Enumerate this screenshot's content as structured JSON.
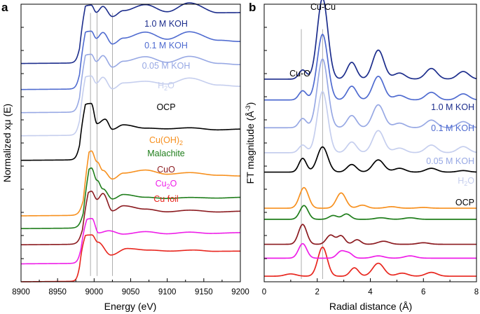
{
  "chart_data": [
    {
      "panel": "a",
      "type": "line",
      "title": "",
      "xlabel": "Energy (eV)",
      "ylabel": "Normalized xμ (E)",
      "xlim": [
        8900,
        9200
      ],
      "xticks": [
        "8900",
        "8950",
        "9000",
        "9050",
        "9100",
        "9150",
        "9200"
      ],
      "ylim": [
        0,
        9.6
      ],
      "reference_lines_x": [
        8995,
        9004,
        9025
      ],
      "series": [
        {
          "name": "Cu foil",
          "label": "Cu foil",
          "color": "#e8251d",
          "offset": 0.0,
          "edge": 8980,
          "edge_width": 2.0,
          "osc": [
            [
              8997,
              0.6
            ],
            [
              9005,
              0.35
            ],
            [
              9023,
              -0.1
            ],
            [
              9045,
              0.12
            ],
            [
              9075,
              0.06
            ],
            [
              9105,
              0.02
            ],
            [
              9135,
              0.05
            ],
            [
              9165,
              0.0
            ],
            [
              9200,
              0.0
            ]
          ]
        },
        {
          "name": "Cu2O",
          "label_main": "Cu",
          "label_sub": "2",
          "label_tail": "O",
          "color": "#ee1ee8",
          "offset": 0.62,
          "edge": 8982,
          "edge_width": 2.4,
          "osc": [
            [
              8997,
              0.55
            ],
            [
              9006,
              0.05
            ],
            [
              9020,
              0.12
            ],
            [
              9040,
              0.0
            ],
            [
              9070,
              0.08
            ],
            [
              9100,
              0.0
            ],
            [
              9130,
              0.05
            ],
            [
              9160,
              0.0
            ],
            [
              9200,
              0.02
            ]
          ]
        },
        {
          "name": "CuO",
          "label": "CuO",
          "color": "#8b1a1f",
          "offset": 1.28,
          "edge": 8984,
          "edge_width": 3.0,
          "osc": [
            [
              8996,
              0.85
            ],
            [
              9004,
              0.55
            ],
            [
              9012,
              0.75
            ],
            [
              9025,
              0.15
            ],
            [
              9040,
              0.32
            ],
            [
              9070,
              0.2
            ],
            [
              9100,
              0.1
            ],
            [
              9130,
              0.15
            ],
            [
              9170,
              0.08
            ],
            [
              9200,
              0.1
            ]
          ]
        },
        {
          "name": "Malachite",
          "label": "Malachite",
          "color": "#1e7d1a",
          "offset": 1.84,
          "edge": 8985,
          "edge_width": 3.0,
          "osc": [
            [
              8996,
              1.1
            ],
            [
              9004,
              0.65
            ],
            [
              9012,
              0.35
            ],
            [
              9025,
              0.0
            ],
            [
              9040,
              0.15
            ],
            [
              9070,
              0.05
            ],
            [
              9100,
              0.0
            ],
            [
              9130,
              0.03
            ],
            [
              9170,
              0.0
            ],
            [
              9200,
              0.02
            ]
          ]
        },
        {
          "name": "Cu(OH)2",
          "label_main": "Cu(OH)",
          "label_sub": "2",
          "label_tail": "",
          "color": "#f7901e",
          "offset": 2.28,
          "edge": 8985,
          "edge_width": 3.0,
          "osc": [
            [
              8996,
              1.25
            ],
            [
              9004,
              0.85
            ],
            [
              9012,
              0.55
            ],
            [
              9025,
              0.25
            ],
            [
              9040,
              0.45
            ],
            [
              9070,
              0.55
            ],
            [
              9100,
              0.4
            ],
            [
              9130,
              0.45
            ],
            [
              9170,
              0.35
            ],
            [
              9200,
              0.32
            ]
          ]
        },
        {
          "name": "OCP",
          "label": "OCP",
          "color": "#000000",
          "offset": 4.2,
          "edge": 8980,
          "edge_width": 2.5,
          "osc": [
            [
              8996,
              0.95
            ],
            [
              9004,
              0.25
            ],
            [
              9015,
              0.4
            ],
            [
              9025,
              0.05
            ],
            [
              9040,
              0.2
            ],
            [
              9070,
              0.08
            ],
            [
              9100,
              0.05
            ],
            [
              9130,
              0.08
            ],
            [
              9170,
              0.0
            ],
            [
              9200,
              0.02
            ]
          ]
        },
        {
          "name": "H2O",
          "label_main": "H",
          "label_sub": "2",
          "label_tail": "O",
          "color": "#c5ceee",
          "offset": 5.05,
          "edge": 8980,
          "edge_width": 2.5,
          "osc": [
            [
              8996,
              1.05
            ],
            [
              9003,
              0.8
            ],
            [
              9012,
              1.0
            ],
            [
              9025,
              0.6
            ],
            [
              9040,
              0.8
            ],
            [
              9070,
              0.85
            ],
            [
              9100,
              0.75
            ],
            [
              9130,
              0.95
            ],
            [
              9170,
              0.7
            ],
            [
              9200,
              0.65
            ]
          ]
        },
        {
          "name": "0.05 M KOH",
          "label": "0.05 M KOH",
          "color": "#97a8e4",
          "offset": 5.85,
          "edge": 8980,
          "edge_width": 2.5,
          "osc": [
            [
              8996,
              1.0
            ],
            [
              9003,
              0.75
            ],
            [
              9012,
              0.95
            ],
            [
              9025,
              0.55
            ],
            [
              9040,
              0.75
            ],
            [
              9070,
              0.9
            ],
            [
              9100,
              0.7
            ],
            [
              9130,
              0.9
            ],
            [
              9170,
              0.65
            ],
            [
              9200,
              0.6
            ]
          ]
        },
        {
          "name": "0.1 M KOH",
          "label": "0.1 M KOH",
          "color": "#4f6bd0",
          "offset": 6.65,
          "edge": 8980,
          "edge_width": 2.5,
          "osc": [
            [
              8996,
              1.0
            ],
            [
              9003,
              0.75
            ],
            [
              9012,
              0.95
            ],
            [
              9025,
              0.55
            ],
            [
              9040,
              0.75
            ],
            [
              9070,
              0.95
            ],
            [
              9100,
              0.7
            ],
            [
              9130,
              0.95
            ],
            [
              9170,
              0.65
            ],
            [
              9200,
              0.6
            ]
          ]
        },
        {
          "name": "1.0 M KOH",
          "label": "1.0 M KOH",
          "color": "#1c2d8c",
          "offset": 7.55,
          "edge": 8980,
          "edge_width": 2.5,
          "osc": [
            [
              8996,
              1.0
            ],
            [
              9003,
              0.75
            ],
            [
              9012,
              0.95
            ],
            [
              9025,
              0.6
            ],
            [
              9040,
              0.8
            ],
            [
              9070,
              1.0
            ],
            [
              9100,
              0.75
            ],
            [
              9130,
              1.05
            ],
            [
              9170,
              0.7
            ],
            [
              9200,
              0.7
            ]
          ]
        }
      ]
    },
    {
      "panel": "b",
      "type": "line",
      "title": "",
      "xlabel": "Radial distance (Å)",
      "ylabel_main": "FT magnitude (Å",
      "ylabel_sup": "-3",
      "ylabel_tail": ")",
      "xlim": [
        0,
        8
      ],
      "xticks": [
        "0",
        "2",
        "4",
        "6",
        "8"
      ],
      "ylim": [
        0,
        10
      ],
      "reference_lines_x": [
        1.4,
        2.2
      ],
      "peak_annotations": [
        {
          "text": "Cu-O",
          "x": 1.4
        },
        {
          "text": "Cu-Cu",
          "x": 2.2
        }
      ],
      "series": [
        {
          "name": "Cu foil",
          "color": "#e8251d",
          "offset": 0.2,
          "peaks": [
            [
              1.0,
              0.15,
              0.3
            ],
            [
              2.2,
              1.9,
              0.25
            ],
            [
              3.4,
              0.55,
              0.22
            ],
            [
              4.3,
              0.85,
              0.3
            ],
            [
              5.2,
              0.2,
              0.3
            ],
            [
              6.3,
              0.25,
              0.3
            ]
          ]
        },
        {
          "name": "Cu2O",
          "color": "#ee1ee8",
          "offset": 0.85,
          "peaks": [
            [
              1.45,
              0.95,
              0.22
            ],
            [
              2.9,
              0.45,
              0.22
            ],
            [
              3.2,
              0.3,
              0.2
            ],
            [
              4.3,
              0.15,
              0.3
            ],
            [
              5.5,
              0.15,
              0.3
            ]
          ]
        },
        {
          "name": "CuO",
          "color": "#8b1a1f",
          "offset": 1.35,
          "peaks": [
            [
              1.45,
              1.3,
              0.22
            ],
            [
              2.5,
              0.6,
              0.22
            ],
            [
              2.9,
              0.55,
              0.2
            ],
            [
              3.5,
              0.3,
              0.2
            ],
            [
              4.5,
              0.2,
              0.3
            ],
            [
              6.0,
              0.1,
              0.3
            ]
          ]
        },
        {
          "name": "Malachite",
          "color": "#1e7d1a",
          "offset": 2.25,
          "peaks": [
            [
              1.5,
              0.9,
              0.22
            ],
            [
              2.6,
              0.25,
              0.22
            ],
            [
              3.1,
              0.35,
              0.22
            ],
            [
              4.4,
              0.1,
              0.3
            ],
            [
              5.5,
              0.1,
              0.3
            ]
          ]
        },
        {
          "name": "Cu(OH)2",
          "color": "#f7901e",
          "offset": 2.65,
          "peaks": [
            [
              1.5,
              1.35,
              0.24
            ],
            [
              2.9,
              1.0,
              0.25
            ],
            [
              3.7,
              0.2,
              0.25
            ],
            [
              4.8,
              0.1,
              0.3
            ],
            [
              6.0,
              0.05,
              0.3
            ]
          ]
        },
        {
          "name": "OCP",
          "color": "#000000",
          "offset": 3.95,
          "peaks": [
            [
              1.45,
              0.9,
              0.2
            ],
            [
              2.2,
              1.65,
              0.28
            ],
            [
              3.3,
              0.5,
              0.25
            ],
            [
              4.3,
              0.8,
              0.3
            ],
            [
              5.1,
              0.25,
              0.3
            ],
            [
              6.3,
              0.25,
              0.3
            ],
            [
              7.5,
              0.1,
              0.3
            ]
          ]
        },
        {
          "name": "H2O",
          "color": "#c5ceee",
          "offset": 4.65,
          "peaks": [
            [
              1.45,
              0.5,
              0.2
            ],
            [
              2.2,
              4.0,
              0.28
            ],
            [
              3.3,
              0.7,
              0.25
            ],
            [
              4.3,
              1.45,
              0.3
            ],
            [
              5.1,
              0.3,
              0.3
            ],
            [
              6.3,
              0.5,
              0.3
            ],
            [
              7.5,
              0.4,
              0.3
            ]
          ]
        },
        {
          "name": "0.05 M KOH",
          "color": "#97a8e4",
          "offset": 5.55,
          "peaks": [
            [
              1.45,
              0.6,
              0.2
            ],
            [
              2.2,
              4.5,
              0.28
            ],
            [
              3.3,
              0.8,
              0.25
            ],
            [
              4.3,
              1.5,
              0.3
            ],
            [
              5.1,
              0.3,
              0.3
            ],
            [
              6.3,
              0.5,
              0.3
            ],
            [
              7.5,
              0.4,
              0.3
            ]
          ]
        },
        {
          "name": "0.1 M KOH",
          "color": "#4f6bd0",
          "offset": 6.55,
          "peaks": [
            [
              1.45,
              0.6,
              0.2
            ],
            [
              2.2,
              4.3,
              0.28
            ],
            [
              3.3,
              0.9,
              0.25
            ],
            [
              4.3,
              1.55,
              0.3
            ],
            [
              5.1,
              0.3,
              0.3
            ],
            [
              6.3,
              0.5,
              0.3
            ],
            [
              7.5,
              0.4,
              0.3
            ]
          ]
        },
        {
          "name": "1.0 M KOH",
          "color": "#1c2d8c",
          "offset": 7.3,
          "peaks": [
            [
              1.45,
              0.6,
              0.2
            ],
            [
              2.2,
              5.3,
              0.28
            ],
            [
              3.3,
              1.1,
              0.25
            ],
            [
              4.3,
              1.9,
              0.3
            ],
            [
              5.1,
              0.4,
              0.3
            ],
            [
              6.3,
              0.7,
              0.3
            ],
            [
              7.5,
              0.5,
              0.3
            ]
          ]
        }
      ],
      "labels": [
        {
          "main": "1.0 M KOH",
          "sub": "",
          "tail": "",
          "color": "#1c2d8c"
        },
        {
          "main": "0.1 M KOH",
          "sub": "",
          "tail": "",
          "color": "#4f6bd0"
        },
        {
          "main": "0.05 M KOH",
          "sub": "",
          "tail": "",
          "color": "#97a8e4"
        },
        {
          "main": "H",
          "sub": "2",
          "tail": "O",
          "color": "#c5ceee"
        },
        {
          "main": "OCP",
          "sub": "",
          "tail": "",
          "color": "#000000"
        }
      ]
    }
  ],
  "panel_labels": [
    "a",
    "b"
  ]
}
